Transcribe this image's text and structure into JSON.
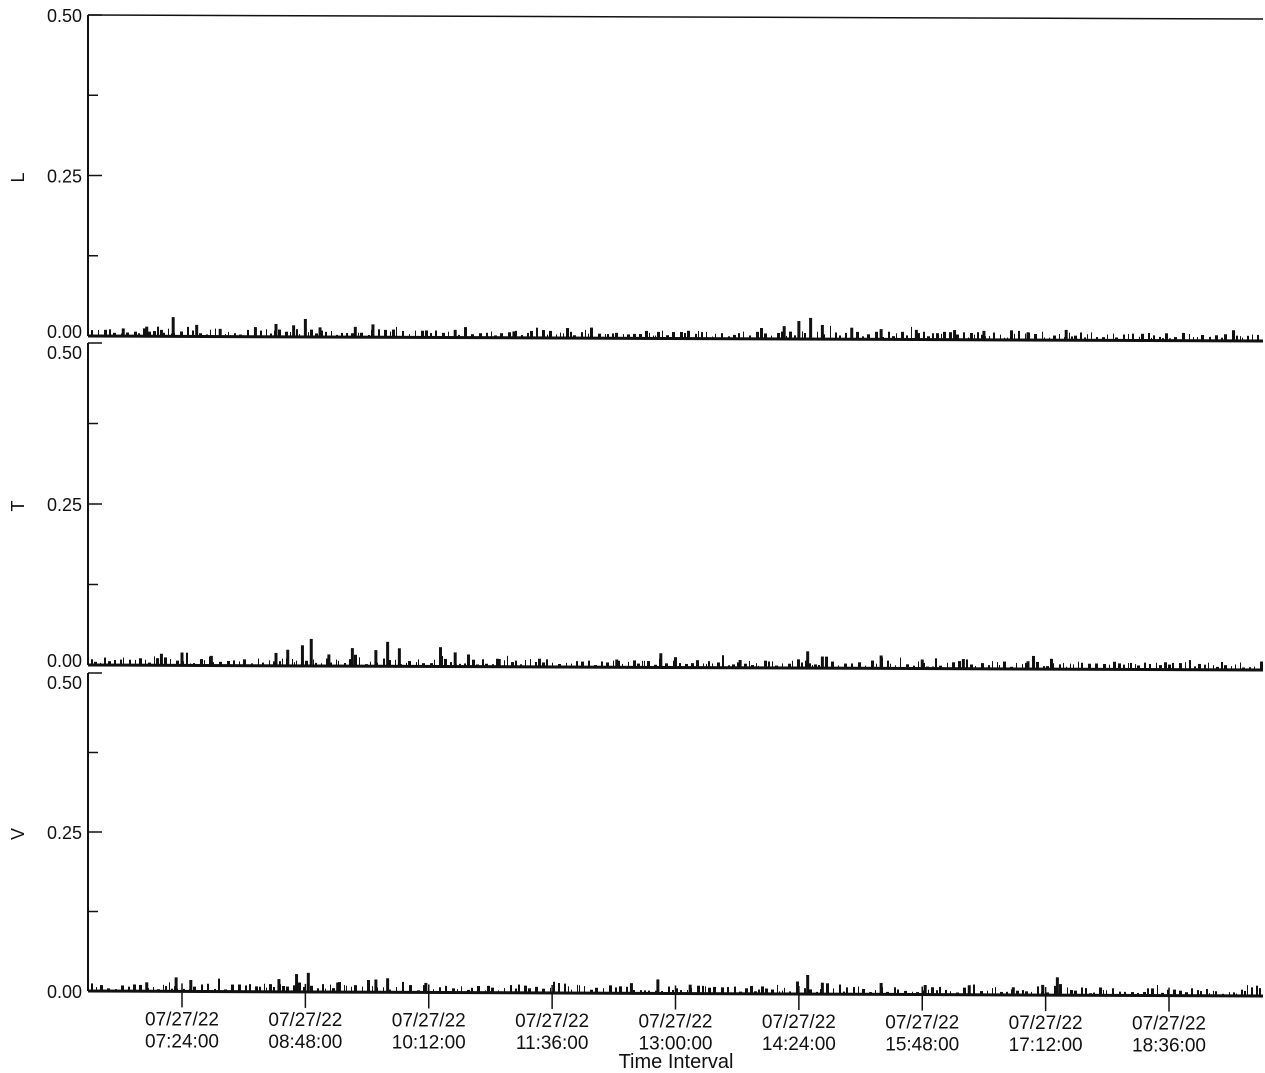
{
  "chart_data": {
    "type": "bar",
    "subplots": 3,
    "shared_x": true,
    "xlabel": "Time Interval",
    "x_ticks": [
      {
        "date": "07/27/22",
        "time": "07:24:00"
      },
      {
        "date": "07/27/22",
        "time": "08:48:00"
      },
      {
        "date": "07/27/22",
        "time": "10:12:00"
      },
      {
        "date": "07/27/22",
        "time": "11:36:00"
      },
      {
        "date": "07/27/22",
        "time": "13:00:00"
      },
      {
        "date": "07/27/22",
        "time": "14:24:00"
      },
      {
        "date": "07/27/22",
        "time": "15:48:00"
      },
      {
        "date": "07/27/22",
        "time": "17:12:00"
      },
      {
        "date": "07/27/22",
        "time": "18:36:00"
      }
    ],
    "x_range": [
      "07/27/22 06:20:00",
      "07/27/22 19:40:00"
    ],
    "series": [
      {
        "name": "L",
        "ylabel": "L",
        "ylim": [
          0.0,
          0.5
        ],
        "y_ticks": [
          "0.50",
          "0.25",
          "0.00"
        ],
        "events": [
          {
            "time": "06:44",
            "value": 0.012
          },
          {
            "time": "07:00",
            "value": 0.015
          },
          {
            "time": "07:10",
            "value": 0.01
          },
          {
            "time": "07:18",
            "value": 0.03
          },
          {
            "time": "07:34",
            "value": 0.018
          },
          {
            "time": "07:50",
            "value": 0.012
          },
          {
            "time": "08:14",
            "value": 0.015
          },
          {
            "time": "08:28",
            "value": 0.02
          },
          {
            "time": "08:40",
            "value": 0.018
          },
          {
            "time": "08:48",
            "value": 0.028
          },
          {
            "time": "08:58",
            "value": 0.015
          },
          {
            "time": "09:22",
            "value": 0.016
          },
          {
            "time": "09:34",
            "value": 0.02
          },
          {
            "time": "09:48",
            "value": 0.012
          },
          {
            "time": "10:30",
            "value": 0.012
          },
          {
            "time": "11:10",
            "value": 0.01
          },
          {
            "time": "14:14",
            "value": 0.02
          },
          {
            "time": "14:24",
            "value": 0.028
          },
          {
            "time": "14:32",
            "value": 0.033
          },
          {
            "time": "14:40",
            "value": 0.022
          },
          {
            "time": "15:00",
            "value": 0.018
          },
          {
            "time": "15:20",
            "value": 0.016
          },
          {
            "time": "15:44",
            "value": 0.015
          },
          {
            "time": "16:10",
            "value": 0.015
          },
          {
            "time": "16:30",
            "value": 0.014
          },
          {
            "time": "17:00",
            "value": 0.012
          },
          {
            "time": "17:26",
            "value": 0.016
          }
        ]
      },
      {
        "name": "T",
        "ylabel": "T",
        "ylim": [
          0.0,
          0.5
        ],
        "y_ticks": [
          "0.50",
          "0.25",
          "0.00"
        ],
        "events": [
          {
            "time": "07:10",
            "value": 0.018
          },
          {
            "time": "07:24",
            "value": 0.02
          },
          {
            "time": "07:44",
            "value": 0.015
          },
          {
            "time": "08:28",
            "value": 0.02
          },
          {
            "time": "08:36",
            "value": 0.025
          },
          {
            "time": "08:46",
            "value": 0.032
          },
          {
            "time": "08:52",
            "value": 0.042
          },
          {
            "time": "09:04",
            "value": 0.018
          },
          {
            "time": "09:20",
            "value": 0.028
          },
          {
            "time": "09:36",
            "value": 0.025
          },
          {
            "time": "09:44",
            "value": 0.038
          },
          {
            "time": "09:52",
            "value": 0.028
          },
          {
            "time": "10:20",
            "value": 0.03
          },
          {
            "time": "10:30",
            "value": 0.022
          },
          {
            "time": "11:00",
            "value": 0.012
          },
          {
            "time": "12:20",
            "value": 0.012
          },
          {
            "time": "12:50",
            "value": 0.022
          },
          {
            "time": "13:00",
            "value": 0.016
          },
          {
            "time": "13:44",
            "value": 0.012
          },
          {
            "time": "14:30",
            "value": 0.026
          },
          {
            "time": "14:40",
            "value": 0.018
          },
          {
            "time": "15:20",
            "value": 0.02
          },
          {
            "time": "15:48",
            "value": 0.014
          },
          {
            "time": "16:16",
            "value": 0.015
          },
          {
            "time": "17:00",
            "value": 0.012
          },
          {
            "time": "17:16",
            "value": 0.016
          }
        ]
      },
      {
        "name": "V",
        "ylabel": "V",
        "ylim": [
          0.0,
          0.5
        ],
        "y_ticks": [
          "0.50",
          "0.25",
          "0.00"
        ],
        "events": [
          {
            "time": "07:00",
            "value": 0.014
          },
          {
            "time": "07:20",
            "value": 0.022
          },
          {
            "time": "07:30",
            "value": 0.018
          },
          {
            "time": "08:30",
            "value": 0.02
          },
          {
            "time": "08:42",
            "value": 0.028
          },
          {
            "time": "08:50",
            "value": 0.03
          },
          {
            "time": "09:10",
            "value": 0.015
          },
          {
            "time": "09:36",
            "value": 0.02
          },
          {
            "time": "09:44",
            "value": 0.022
          },
          {
            "time": "10:10",
            "value": 0.015
          },
          {
            "time": "12:30",
            "value": 0.016
          },
          {
            "time": "12:48",
            "value": 0.022
          },
          {
            "time": "13:10",
            "value": 0.014
          },
          {
            "time": "14:30",
            "value": 0.03
          },
          {
            "time": "14:40",
            "value": 0.018
          },
          {
            "time": "15:20",
            "value": 0.018
          },
          {
            "time": "15:50",
            "value": 0.015
          },
          {
            "time": "16:20",
            "value": 0.015
          },
          {
            "time": "16:50",
            "value": 0.012
          },
          {
            "time": "17:10",
            "value": 0.016
          },
          {
            "time": "17:20",
            "value": 0.028
          }
        ]
      }
    ],
    "grid": false,
    "legend": "none"
  }
}
